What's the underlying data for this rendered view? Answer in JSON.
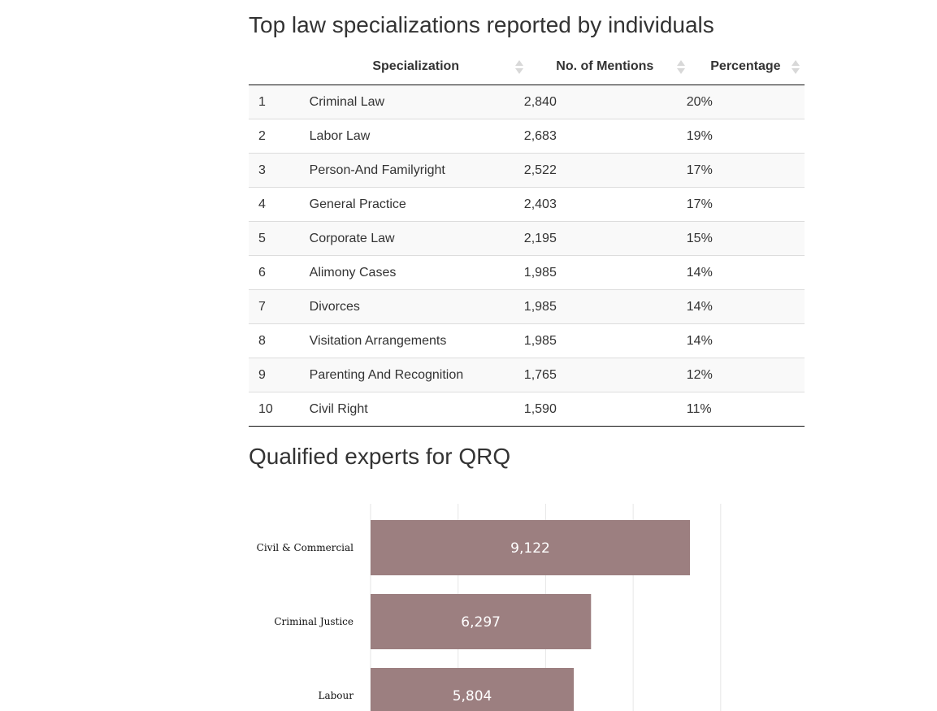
{
  "table_section": {
    "title": "Top law specializations reported by individuals",
    "columns": [
      "",
      "Specialization",
      "No. of Mentions",
      "Percentage"
    ],
    "rows": [
      {
        "idx": "1",
        "spec": "Criminal Law",
        "count": "2,840",
        "pct": "20%"
      },
      {
        "idx": "2",
        "spec": "Labor Law",
        "count": "2,683",
        "pct": "19%"
      },
      {
        "idx": "3",
        "spec": "Person-And Familyright",
        "count": "2,522",
        "pct": "17%"
      },
      {
        "idx": "4",
        "spec": "General Practice",
        "count": "2,403",
        "pct": "17%"
      },
      {
        "idx": "5",
        "spec": "Corporate Law",
        "count": "2,195",
        "pct": "15%"
      },
      {
        "idx": "6",
        "spec": "Alimony Cases",
        "count": "1,985",
        "pct": "14%"
      },
      {
        "idx": "7",
        "spec": "Divorces",
        "count": "1,985",
        "pct": "14%"
      },
      {
        "idx": "8",
        "spec": "Visitation Arrangements",
        "count": "1,985",
        "pct": "14%"
      },
      {
        "idx": "9",
        "spec": "Parenting And Recognition",
        "count": "1,765",
        "pct": "12%"
      },
      {
        "idx": "10",
        "spec": "Civil Right",
        "count": "1,590",
        "pct": "11%"
      }
    ]
  },
  "chart_section": {
    "title": "Qualified experts for QRQ"
  },
  "chart_data": {
    "type": "bar",
    "orientation": "horizontal",
    "categories": [
      "Civil & Commercial",
      "Criminal Justice",
      "Labour"
    ],
    "values": [
      9122,
      6297,
      5804
    ],
    "value_labels": [
      "9,122",
      "6,297",
      "5,804"
    ],
    "xlim": [
      0,
      10000
    ],
    "grid": true,
    "bar_color": "#9c7f80",
    "label_color": "#ffffff"
  }
}
